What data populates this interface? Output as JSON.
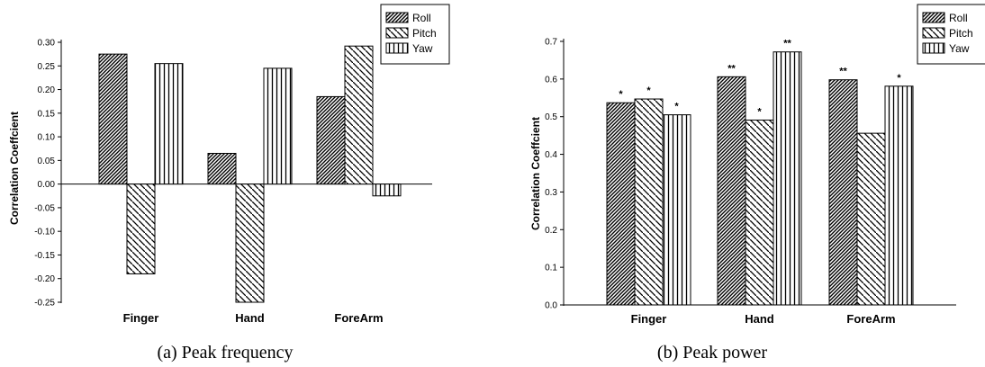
{
  "chart_data": [
    {
      "type": "bar",
      "caption": "(a) Peak frequency",
      "ylabel": "Correlation Coeffcient",
      "categories": [
        "Finger",
        "Hand",
        "ForeArm"
      ],
      "series": [
        {
          "name": "Roll",
          "values": [
            0.275,
            0.065,
            0.185
          ]
        },
        {
          "name": "Pitch",
          "values": [
            -0.19,
            -0.25,
            0.292
          ]
        },
        {
          "name": "Yaw",
          "values": [
            0.255,
            0.245,
            -0.025
          ]
        }
      ],
      "ylim": [
        -0.25,
        0.3
      ],
      "yticks": [
        "0.30",
        "0.25",
        "0.20",
        "0.15",
        "0.10",
        "0.05",
        "0.00",
        "-0.05",
        "-0.10",
        "-0.15",
        "-0.20",
        "-0.25"
      ],
      "legend": "top-right",
      "grid": false
    },
    {
      "type": "bar",
      "caption": "(b) Peak power",
      "ylabel": "Correlation Coeffcient",
      "categories": [
        "Finger",
        "Hand",
        "ForeArm"
      ],
      "series": [
        {
          "name": "Roll",
          "values": [
            0.537,
            0.606,
            0.598
          ],
          "annotations": [
            "*",
            "**",
            "**"
          ]
        },
        {
          "name": "Pitch",
          "values": [
            0.547,
            0.491,
            0.456
          ],
          "annotations": [
            "*",
            "*",
            ""
          ]
        },
        {
          "name": "Yaw",
          "values": [
            0.505,
            0.672,
            0.581
          ],
          "annotations": [
            "*",
            "**",
            "*"
          ]
        }
      ],
      "ylim": [
        0.0,
        0.7
      ],
      "yticks": [
        "0.0",
        "0.1",
        "0.2",
        "0.3",
        "0.4",
        "0.5",
        "0.6",
        "0.7"
      ],
      "legend": "top-right",
      "grid": false
    }
  ]
}
